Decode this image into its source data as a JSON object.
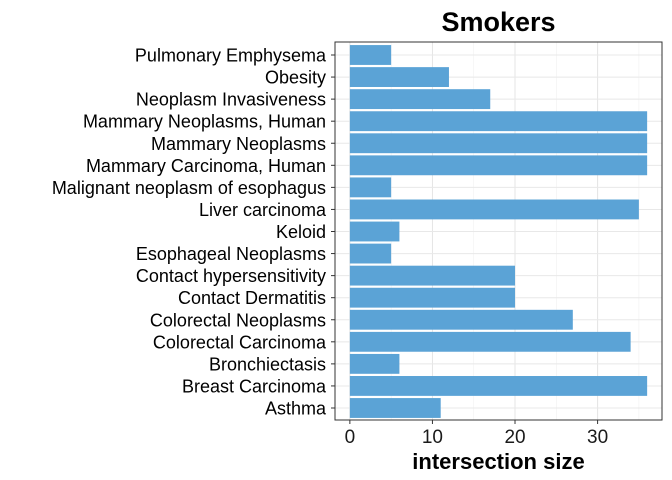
{
  "chart_data": {
    "type": "bar",
    "orientation": "horizontal",
    "title": "Smokers",
    "xlabel": "intersection size",
    "ylabel": "",
    "categories": [
      "Pulmonary Emphysema",
      "Obesity",
      "Neoplasm Invasiveness",
      "Mammary Neoplasms, Human",
      "Mammary Neoplasms",
      "Mammary Carcinoma, Human",
      "Malignant neoplasm of esophagus",
      "Liver carcinoma",
      "Keloid",
      "Esophageal Neoplasms",
      "Contact hypersensitivity",
      "Contact Dermatitis",
      "Colorectal Neoplasms",
      "Colorectal Carcinoma",
      "Bronchiectasis",
      "Breast Carcinoma",
      "Asthma"
    ],
    "values": [
      5,
      12,
      17,
      36,
      36,
      36,
      5,
      35,
      6,
      5,
      20,
      20,
      27,
      34,
      6,
      36,
      11
    ],
    "xlim": [
      -1.8,
      37.8
    ],
    "xticks": [
      0,
      10,
      20,
      30
    ],
    "bar_color": "#5BA3D6",
    "grid": true,
    "legend": "none"
  }
}
